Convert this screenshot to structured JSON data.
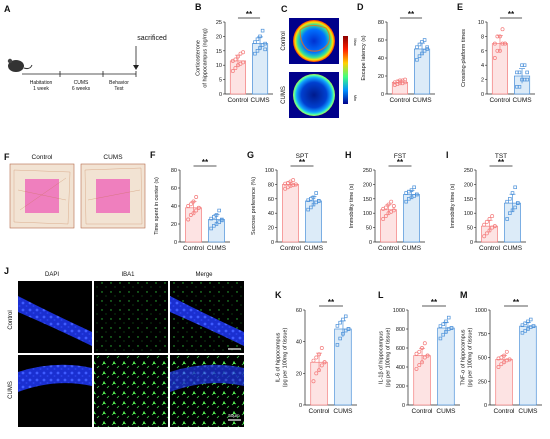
{
  "colors": {
    "control": "#f47c7c",
    "cums": "#4a90d9",
    "control_fill": "#fde3e3",
    "cums_fill": "#dcebf8"
  },
  "timeline": {
    "label_a": "A",
    "sacrificed": "sacrificed",
    "stage1_line1": "Habitation",
    "stage1_line2": "1 week",
    "stage2_line1": "CUMS",
    "stage2_line2": "6 weeks",
    "stage3_line1": "Behavior",
    "stage3_line2": "Test",
    "mouse_icon": "mouse-icon"
  },
  "heatmap": {
    "label": "C",
    "row1": "Control",
    "row2": "CUMS",
    "scale_max": "Max",
    "scale_min": "Min"
  },
  "openfield": {
    "label": "F",
    "col1": "Control",
    "col2": "CUMS"
  },
  "microscopy": {
    "label": "J",
    "cols": [
      "DAPI",
      "IBA1",
      "Merge"
    ],
    "rows": [
      "Control",
      "CUMS"
    ],
    "scalebar": "50μm"
  },
  "chart_data": [
    {
      "type": "bar",
      "panel": "B",
      "title": "",
      "categories": [
        "Control",
        "CUMS"
      ],
      "ylabel": [
        "Corticosterone",
        "of hippocampus (ng/mg)"
      ],
      "ylim": [
        0,
        25
      ],
      "yticks": [
        0,
        5,
        10,
        15,
        20,
        25
      ],
      "values": [
        11.5,
        17.5
      ],
      "significance": "**",
      "points": [
        [
          8,
          9,
          10,
          10.5,
          11,
          11.5,
          12,
          13,
          14,
          14.5
        ],
        [
          14,
          15,
          16,
          17,
          17.5,
          18,
          19,
          20,
          22,
          15.5
        ]
      ]
    },
    {
      "type": "bar",
      "panel": "D",
      "title": "",
      "categories": [
        "Control",
        "CUMS"
      ],
      "ylabel": [
        "Escape latency (s)"
      ],
      "ylim": [
        0,
        80
      ],
      "yticks": [
        0,
        20,
        40,
        60,
        80
      ],
      "values": [
        13,
        50
      ],
      "significance": "**",
      "points": [
        [
          10,
          11,
          12,
          12,
          13,
          13,
          14,
          15,
          15,
          16
        ],
        [
          38,
          42,
          45,
          48,
          50,
          52,
          55,
          58,
          60,
          52
        ]
      ]
    },
    {
      "type": "bar",
      "panel": "E",
      "title": "",
      "categories": [
        "Control",
        "CUMS"
      ],
      "ylabel": [
        "Crossing-platform times"
      ],
      "ylim": [
        0,
        10
      ],
      "yticks": [
        0,
        2,
        4,
        6,
        8,
        10
      ],
      "values": [
        7,
        2.5
      ],
      "significance": "**",
      "points": [
        [
          5,
          6,
          6,
          7,
          7,
          7,
          8,
          8,
          9,
          7
        ],
        [
          1,
          1,
          2,
          2,
          2,
          3,
          3,
          4,
          4,
          3
        ]
      ]
    },
    {
      "type": "bar",
      "panel": "F",
      "title": "",
      "categories": [
        "Control",
        "CUMS"
      ],
      "ylabel": [
        "Time spent in center (s)"
      ],
      "ylim": [
        0,
        80
      ],
      "yticks": [
        0,
        20,
        40,
        60,
        80
      ],
      "values": [
        38,
        25
      ],
      "significance": "**",
      "points": [
        [
          25,
          30,
          32,
          35,
          38,
          40,
          42,
          45,
          50,
          38
        ],
        [
          15,
          18,
          20,
          22,
          24,
          26,
          28,
          30,
          35,
          25
        ]
      ]
    },
    {
      "type": "bar",
      "panel": "G",
      "title": "SPT",
      "categories": [
        "Control",
        "CUMS"
      ],
      "ylabel": [
        "Sucrose preference (%)"
      ],
      "ylim": [
        0,
        100
      ],
      "yticks": [
        0,
        20,
        40,
        60,
        80,
        100
      ],
      "values": [
        80,
        57
      ],
      "significance": "**",
      "points": [
        [
          74,
          76,
          78,
          79,
          80,
          81,
          82,
          84,
          86,
          80
        ],
        [
          45,
          48,
          52,
          55,
          57,
          58,
          60,
          62,
          68,
          57
        ]
      ]
    },
    {
      "type": "bar",
      "panel": "H",
      "title": "FST",
      "categories": [
        "Control",
        "CUMS"
      ],
      "ylabel": [
        "Immobility time (s)"
      ],
      "ylim": [
        0,
        250
      ],
      "yticks": [
        0,
        50,
        100,
        150,
        200,
        250
      ],
      "values": [
        112,
        165
      ],
      "significance": "**",
      "points": [
        [
          80,
          90,
          100,
          105,
          110,
          115,
          120,
          130,
          140,
          125
        ],
        [
          140,
          150,
          155,
          160,
          165,
          170,
          175,
          180,
          190,
          165
        ]
      ]
    },
    {
      "type": "bar",
      "panel": "I",
      "title": "TST",
      "categories": [
        "Control",
        "CUMS"
      ],
      "ylabel": [
        "Immobility time (s)"
      ],
      "ylim": [
        0,
        250
      ],
      "yticks": [
        0,
        50,
        100,
        150,
        200,
        250
      ],
      "values": [
        55,
        135
      ],
      "significance": "**",
      "points": [
        [
          20,
          30,
          40,
          50,
          55,
          60,
          70,
          80,
          90,
          55
        ],
        [
          80,
          100,
          110,
          120,
          135,
          140,
          150,
          170,
          190,
          135
        ]
      ]
    },
    {
      "type": "bar",
      "panel": "K",
      "title": "",
      "categories": [
        "Control",
        "CUMS"
      ],
      "ylabel": [
        "IL-6 of hippocampus",
        "(pg per 100mg of tissue)"
      ],
      "ylim": [
        0,
        60
      ],
      "yticks": [
        0,
        20,
        40,
        60
      ],
      "values": [
        27,
        48
      ],
      "significance": "**",
      "points": [
        [
          15,
          20,
          22,
          25,
          27,
          28,
          30,
          32,
          36,
          27
        ],
        [
          38,
          42,
          45,
          47,
          48,
          50,
          52,
          54,
          56,
          48
        ]
      ]
    },
    {
      "type": "bar",
      "panel": "L",
      "title": "",
      "categories": [
        "Control",
        "CUMS"
      ],
      "ylabel": [
        "IL-1β of hippocampus",
        "(pg per 100mg of tissue)"
      ],
      "ylim": [
        0,
        1000
      ],
      "yticks": [
        0,
        200,
        400,
        600,
        800,
        1000
      ],
      "values": [
        520,
        810
      ],
      "significance": "**",
      "points": [
        [
          380,
          420,
          450,
          500,
          520,
          540,
          560,
          600,
          650,
          520
        ],
        [
          700,
          740,
          770,
          800,
          810,
          830,
          850,
          880,
          920,
          810
        ]
      ]
    },
    {
      "type": "bar",
      "panel": "M",
      "title": "",
      "categories": [
        "Control",
        "CUMS"
      ],
      "ylabel": [
        "TNF-α of hippocampus",
        "(pg per 100mg of tissue)"
      ],
      "ylim": [
        0,
        1000
      ],
      "yticks": [
        0,
        250,
        500,
        750,
        1000
      ],
      "values": [
        480,
        830
      ],
      "significance": "**",
      "points": [
        [
          400,
          430,
          450,
          470,
          480,
          490,
          500,
          520,
          560,
          480
        ],
        [
          760,
          780,
          800,
          820,
          830,
          840,
          860,
          880,
          900,
          830
        ]
      ]
    }
  ]
}
